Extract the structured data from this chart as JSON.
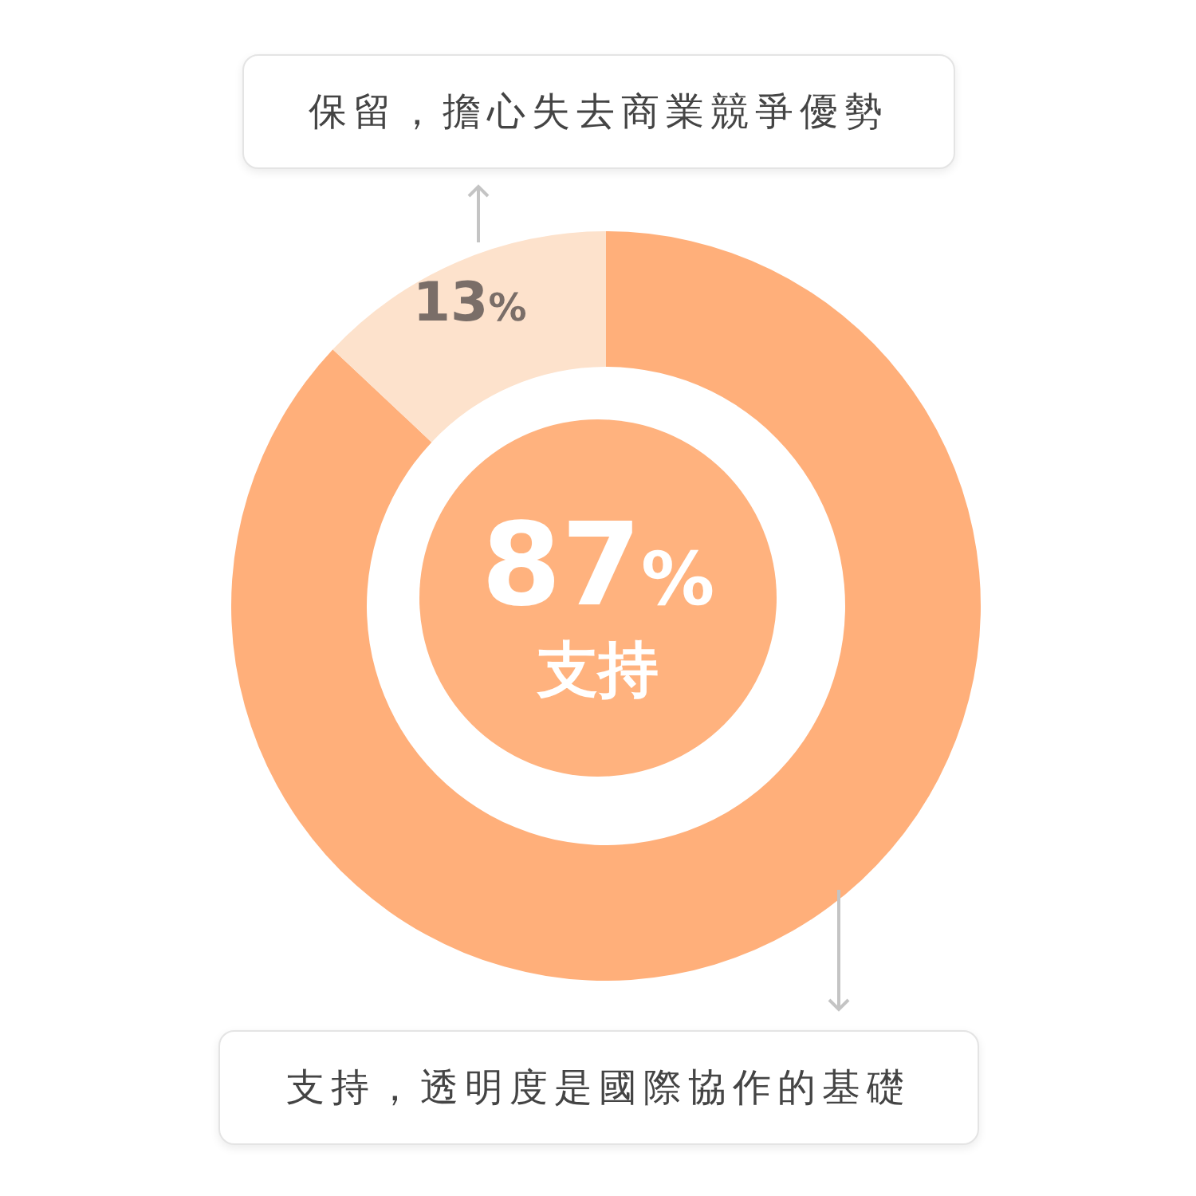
{
  "chart_data": {
    "type": "donut",
    "categories": [
      "支持，透明度是國際協作的基礎",
      "保留，擔心失去商業競爭優勢"
    ],
    "values": [
      87,
      13
    ],
    "colors": [
      "#ffaf7a",
      "#fde2cc"
    ],
    "value_labels": [
      null,
      "13%"
    ],
    "annotations": [
      "87%",
      "支持"
    ]
  }
}
